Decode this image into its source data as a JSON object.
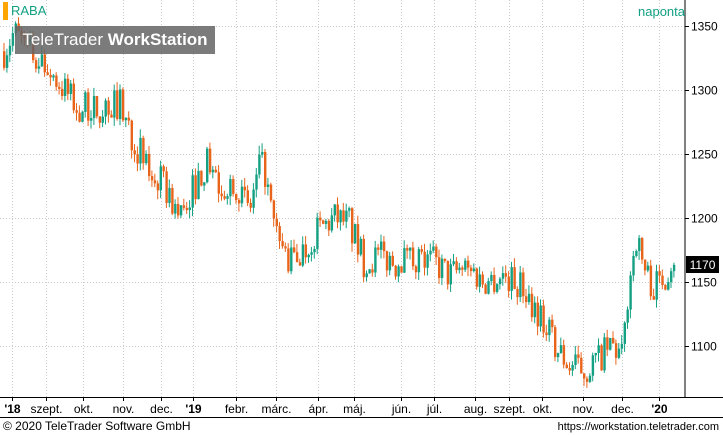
{
  "header": {
    "symbol": "RABA",
    "interval": "naponta",
    "brand_light": "TeleTrader ",
    "brand_bold": "WorkStation"
  },
  "footer": {
    "copyright": "© 2020  TeleTrader Software GmbH",
    "url": "https://workstation.teletrader.com"
  },
  "chart_data": {
    "type": "candlestick",
    "last_price": "1170",
    "ylim": [
      1060,
      1370
    ],
    "y_ticks": [
      {
        "value": 1350,
        "label": "1350"
      },
      {
        "value": 1300,
        "label": "1300"
      },
      {
        "value": 1250,
        "label": "1250"
      },
      {
        "value": 1200,
        "label": "1200"
      },
      {
        "value": 1150,
        "label": "1150"
      },
      {
        "value": 1100,
        "label": "1100"
      }
    ],
    "x_ticks": [
      {
        "label": "'18"
      },
      {
        "label": "szept."
      },
      {
        "label": "okt."
      },
      {
        "label": "nov."
      },
      {
        "label": "dec."
      },
      {
        "label": "'19"
      },
      {
        "label": "febr."
      },
      {
        "label": "márc."
      },
      {
        "label": "ápr."
      },
      {
        "label": "máj."
      },
      {
        "label": "jún."
      },
      {
        "label": "júl."
      },
      {
        "label": "aug."
      },
      {
        "label": "szept."
      },
      {
        "label": "okt."
      },
      {
        "label": "nov."
      },
      {
        "label": "dec."
      },
      {
        "label": "'20"
      }
    ],
    "colors": {
      "up": "#13a083",
      "down": "#e8641b",
      "grid": "#cccccc",
      "last_bg": "#000000"
    },
    "anchors": [
      {
        "x": 0,
        "p": 1330
      },
      {
        "x": 10,
        "p": 1345
      },
      {
        "x": 25,
        "p": 1330
      },
      {
        "x": 40,
        "p": 1320
      },
      {
        "x": 60,
        "p": 1300
      },
      {
        "x": 75,
        "p": 1285
      },
      {
        "x": 95,
        "p": 1285
      },
      {
        "x": 115,
        "p": 1290
      },
      {
        "x": 130,
        "p": 1260
      },
      {
        "x": 145,
        "p": 1235
      },
      {
        "x": 160,
        "p": 1225
      },
      {
        "x": 175,
        "p": 1200
      },
      {
        "x": 190,
        "p": 1225
      },
      {
        "x": 205,
        "p": 1245
      },
      {
        "x": 215,
        "p": 1225
      },
      {
        "x": 230,
        "p": 1230
      },
      {
        "x": 245,
        "p": 1205
      },
      {
        "x": 258,
        "p": 1250
      },
      {
        "x": 270,
        "p": 1190
      },
      {
        "x": 285,
        "p": 1165
      },
      {
        "x": 300,
        "p": 1175
      },
      {
        "x": 315,
        "p": 1190
      },
      {
        "x": 330,
        "p": 1200
      },
      {
        "x": 345,
        "p": 1195
      },
      {
        "x": 360,
        "p": 1165
      },
      {
        "x": 375,
        "p": 1170
      },
      {
        "x": 390,
        "p": 1165
      },
      {
        "x": 410,
        "p": 1170
      },
      {
        "x": 430,
        "p": 1165
      },
      {
        "x": 445,
        "p": 1155
      },
      {
        "x": 460,
        "p": 1160
      },
      {
        "x": 480,
        "p": 1150
      },
      {
        "x": 500,
        "p": 1155
      },
      {
        "x": 520,
        "p": 1145
      },
      {
        "x": 535,
        "p": 1125
      },
      {
        "x": 550,
        "p": 1100
      },
      {
        "x": 565,
        "p": 1085
      },
      {
        "x": 580,
        "p": 1080
      },
      {
        "x": 595,
        "p": 1090
      },
      {
        "x": 608,
        "p": 1100
      },
      {
        "x": 618,
        "p": 1090
      },
      {
        "x": 625,
        "p": 1150
      },
      {
        "x": 632,
        "p": 1185
      },
      {
        "x": 640,
        "p": 1160
      },
      {
        "x": 650,
        "p": 1145
      },
      {
        "x": 660,
        "p": 1155
      },
      {
        "x": 670,
        "p": 1170
      }
    ]
  }
}
